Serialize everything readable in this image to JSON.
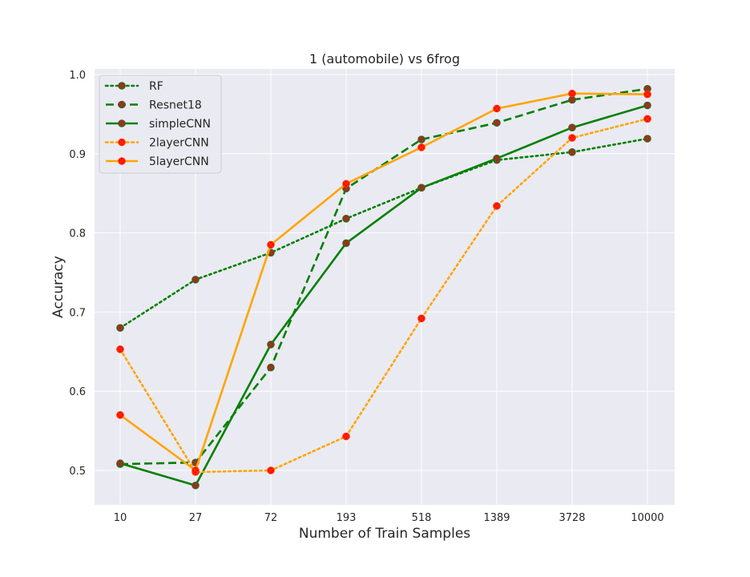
{
  "chart_data": {
    "type": "line",
    "title": "1 (automobile)  vs 6frog",
    "xlabel": "Number of Train Samples",
    "ylabel": "Accuracy",
    "categories": [
      "10",
      "27",
      "72",
      "193",
      "518",
      "1389",
      "3728",
      "10000"
    ],
    "ylim": [
      0.46,
      1.0
    ],
    "yticks": [
      0.5,
      0.6,
      0.7,
      0.8,
      0.9,
      1.0
    ],
    "ytick_labels": [
      "0.5",
      "0.6",
      "0.7",
      "0.8",
      "0.9",
      "1.0"
    ],
    "grid": true,
    "legend_position": "top-left",
    "background": "#eaeaf2",
    "marker_color": "#ff0000",
    "series": [
      {
        "name": "RF",
        "color": "#008000",
        "dash": "dotted",
        "values": [
          0.68,
          0.741,
          0.775,
          0.818,
          0.857,
          0.892,
          0.902,
          0.919
        ]
      },
      {
        "name": "Resnet18",
        "color": "#008000",
        "dash": "dashed",
        "values": [
          0.508,
          0.51,
          0.63,
          0.856,
          0.918,
          0.939,
          0.968,
          0.982
        ]
      },
      {
        "name": "simpleCNN",
        "color": "#008000",
        "dash": "solid",
        "values": [
          0.509,
          0.481,
          0.659,
          0.787,
          0.857,
          0.894,
          0.933,
          0.961
        ]
      },
      {
        "name": "2layerCNN",
        "color": "#ffa500",
        "dash": "dotted",
        "values": [
          0.653,
          0.498,
          0.5,
          0.543,
          0.692,
          0.834,
          0.92,
          0.944
        ]
      },
      {
        "name": "5layerCNN",
        "color": "#ffa500",
        "dash": "solid",
        "values": [
          0.57,
          0.5,
          0.785,
          0.862,
          0.908,
          0.957,
          0.976,
          0.975
        ]
      }
    ]
  }
}
